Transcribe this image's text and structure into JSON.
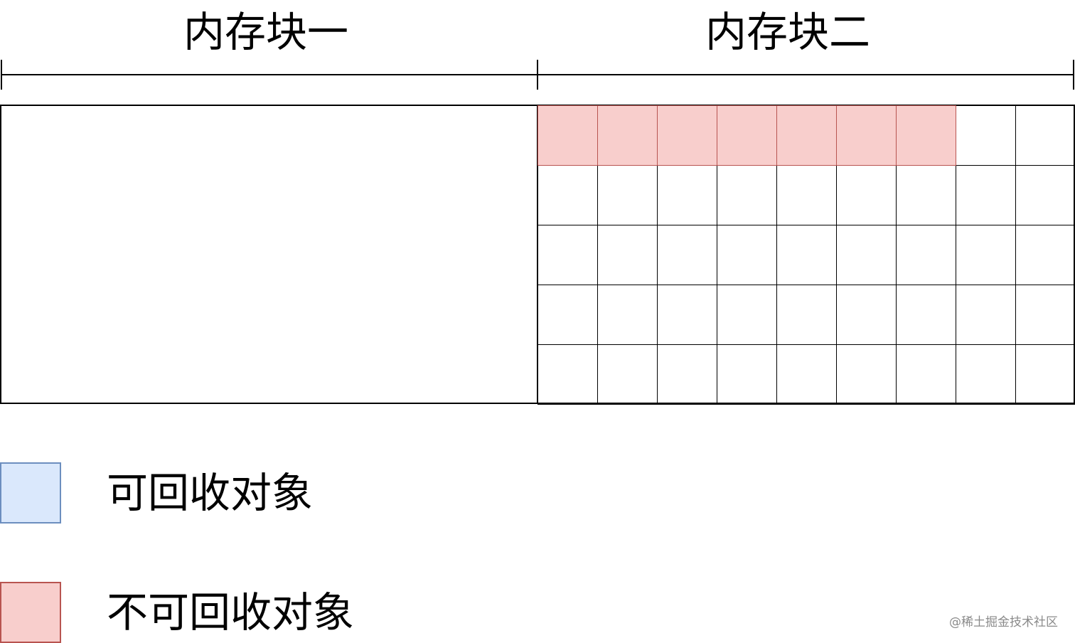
{
  "blocks": [
    {
      "title": "内存块一"
    },
    {
      "title": "内存块二",
      "grid": {
        "rows": 5,
        "cols": 9,
        "non_recyclable_cells": [
          [
            0,
            0
          ],
          [
            0,
            1
          ],
          [
            0,
            2
          ],
          [
            0,
            3
          ],
          [
            0,
            4
          ],
          [
            0,
            5
          ],
          [
            0,
            6
          ]
        ]
      }
    }
  ],
  "legend": [
    {
      "label": "可回收对象",
      "fill": "#dae8fc",
      "stroke": "#6c8ebf"
    },
    {
      "label": "不可回收对象",
      "fill": "#f8cecc",
      "stroke": "#b85450"
    }
  ],
  "watermark": "@稀土掘金技术社区"
}
